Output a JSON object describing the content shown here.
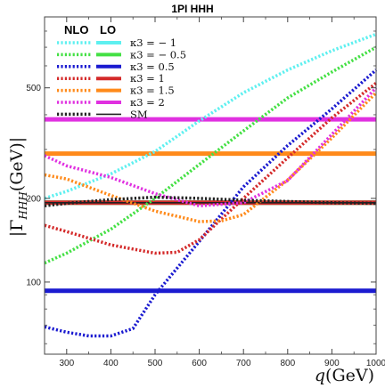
{
  "chart_data": {
    "type": "line",
    "title": "1PI HHH",
    "xlabel": "q(GeV)",
    "ylabel": "|ΓHHH(GeV)|",
    "ylabel_main": "|Γ",
    "ylabel_sub": "HHH",
    "ylabel_tail": "(GeV)|",
    "xlabel_main": "q",
    "xlabel_tail": "(GeV)",
    "xlim": [
      250,
      1000
    ],
    "ylim": [
      55,
      900
    ],
    "yscale": "log",
    "grid": false,
    "legend_position": "top-left",
    "legend_headers": {
      "nlo": "NLO",
      "lo": "LO"
    },
    "x_ticks": [
      300,
      400,
      500,
      600,
      700,
      800,
      900,
      1000
    ],
    "x_tick_labels": [
      "300",
      "400",
      "500",
      "600",
      "700",
      "800",
      "900",
      "1000"
    ],
    "y_ticks": [
      100,
      200,
      500
    ],
    "y_tick_labels": [
      "100",
      "200",
      "500"
    ],
    "series": [
      {
        "name": "κ3 = − 1",
        "color": "#5ef0f0",
        "lo_value": 193,
        "nlo": [
          [
            250,
            200
          ],
          [
            300,
            212
          ],
          [
            400,
            245
          ],
          [
            500,
            295
          ],
          [
            600,
            380
          ],
          [
            700,
            480
          ],
          [
            800,
            580
          ],
          [
            900,
            680
          ],
          [
            1000,
            780
          ]
        ]
      },
      {
        "name": "κ3 = − 0.5",
        "color": "#44e044",
        "lo_value": 193,
        "nlo": [
          [
            250,
            117
          ],
          [
            300,
            127
          ],
          [
            400,
            155
          ],
          [
            500,
            200
          ],
          [
            600,
            265
          ],
          [
            700,
            350
          ],
          [
            800,
            460
          ],
          [
            900,
            570
          ],
          [
            1000,
            700
          ]
        ]
      },
      {
        "name": "κ3 = 0.5",
        "color": "#1a1ad0",
        "lo_value": 93,
        "nlo": [
          [
            250,
            69
          ],
          [
            300,
            66
          ],
          [
            350,
            64
          ],
          [
            400,
            64
          ],
          [
            450,
            68
          ],
          [
            500,
            90
          ],
          [
            600,
            140
          ],
          [
            700,
            220
          ],
          [
            800,
            310
          ],
          [
            900,
            420
          ],
          [
            1000,
            580
          ]
        ]
      },
      {
        "name": "κ3 = 1",
        "color": "#d42a2a",
        "lo_value": 193,
        "nlo": [
          [
            250,
            160
          ],
          [
            300,
            152
          ],
          [
            400,
            136
          ],
          [
            500,
            127
          ],
          [
            550,
            128
          ],
          [
            600,
            142
          ],
          [
            700,
            200
          ],
          [
            800,
            280
          ],
          [
            900,
            390
          ],
          [
            1000,
            520
          ]
        ]
      },
      {
        "name": "κ3 = 1.5",
        "color": "#ff8a1a",
        "lo_value": 290,
        "nlo": [
          [
            250,
            243
          ],
          [
            300,
            235
          ],
          [
            400,
            205
          ],
          [
            500,
            180
          ],
          [
            600,
            165
          ],
          [
            650,
            166
          ],
          [
            700,
            175
          ],
          [
            800,
            233
          ],
          [
            900,
            330
          ],
          [
            1000,
            480
          ]
        ]
      },
      {
        "name": "κ3 = 2",
        "color": "#e030e0",
        "lo_value": 385,
        "nlo": [
          [
            250,
            285
          ],
          [
            300,
            262
          ],
          [
            400,
            238
          ],
          [
            500,
            208
          ],
          [
            600,
            188
          ],
          [
            700,
            193
          ],
          [
            800,
            232
          ],
          [
            900,
            340
          ],
          [
            1000,
            500
          ]
        ]
      },
      {
        "name": "SM",
        "color": "#222222",
        "lo_value": 193,
        "nlo": [
          [
            250,
            188
          ],
          [
            300,
            192
          ],
          [
            400,
            198
          ],
          [
            500,
            202
          ],
          [
            600,
            200
          ],
          [
            700,
            197
          ],
          [
            800,
            195
          ],
          [
            900,
            193
          ],
          [
            1000,
            192
          ]
        ]
      }
    ]
  }
}
